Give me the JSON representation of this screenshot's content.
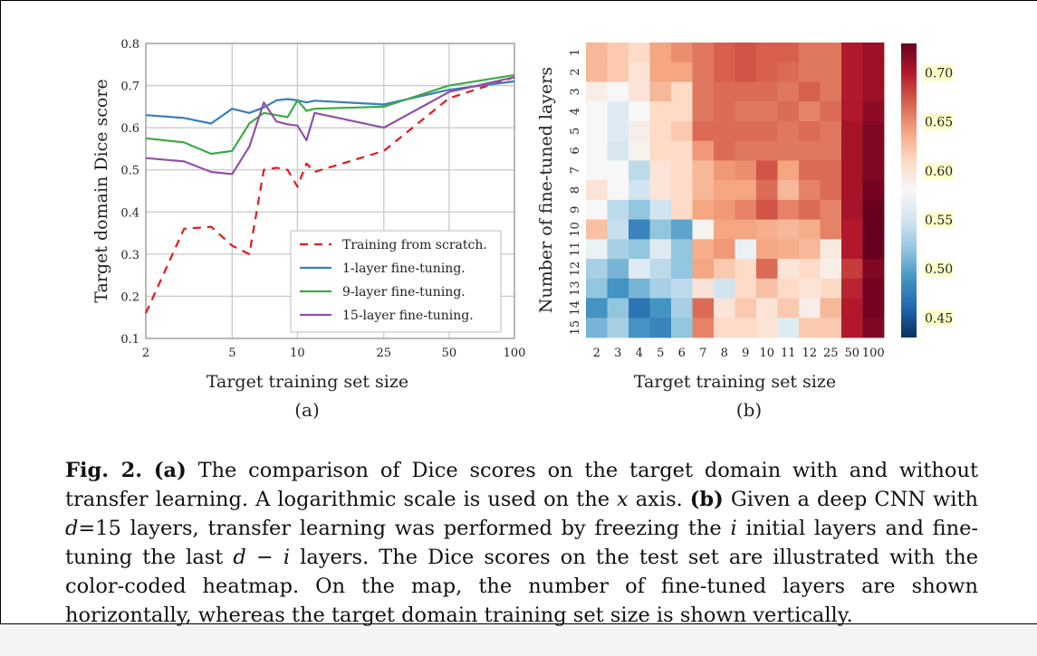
{
  "caption": {
    "fig_label": "Fig. 2.",
    "a_label": "(a)",
    "a_text": "The comparison of Dice scores on the target domain with and without transfer learning. A logarithmic scale is used on the",
    "a_var": "x",
    "a_text2": "axis.",
    "b_label": "(b)",
    "b_text1": "Given a deep CNN with",
    "b_var_d": "d",
    "b_text2": "=15 layers, transfer learning was performed by freezing the",
    "b_var_i": "i",
    "b_text3": "initial layers and fine-tuning the last",
    "b_expr": "d − i",
    "b_text4": "layers. The Dice scores on the test set are illustrated with the color-coded heatmap. On the map, the number of fine-tuned layers are shown horizontally, whereas the target domain training set size is shown vertically."
  },
  "chart_data": [
    {
      "type": "line",
      "panel_label": "(a)",
      "xlabel": "Target training set size",
      "ylabel": "Target domain  Dice score",
      "xscale": "log",
      "xlim": [
        2,
        100
      ],
      "ylim": [
        0.1,
        0.8
      ],
      "xticks": [
        2,
        5,
        10,
        25,
        50,
        100
      ],
      "yticks": [
        0.1,
        0.2,
        0.3,
        0.4,
        0.5,
        0.6,
        0.7,
        0.8
      ],
      "grid": true,
      "legend_position": "lower-right",
      "series": [
        {
          "name": "Training from scratch.",
          "color": "#e3191c",
          "dash": true,
          "x": [
            2,
            3,
            4,
            5,
            6,
            7,
            8,
            9,
            10,
            11,
            12,
            25,
            50,
            100
          ],
          "y": [
            0.16,
            0.36,
            0.365,
            0.32,
            0.3,
            0.5,
            0.505,
            0.5,
            0.46,
            0.515,
            0.495,
            0.545,
            0.67,
            0.72
          ]
        },
        {
          "name": "1-layer fine-tuning.",
          "color": "#3a7dbd",
          "dash": false,
          "x": [
            2,
            3,
            4,
            5,
            6,
            7,
            8,
            9,
            10,
            11,
            12,
            25,
            50,
            100
          ],
          "y": [
            0.63,
            0.623,
            0.61,
            0.645,
            0.635,
            0.648,
            0.665,
            0.668,
            0.665,
            0.66,
            0.664,
            0.655,
            0.69,
            0.71
          ]
        },
        {
          "name": "9-layer fine-tuning.",
          "color": "#3cab47",
          "dash": false,
          "x": [
            2,
            3,
            4,
            5,
            6,
            7,
            8,
            9,
            10,
            11,
            12,
            25,
            50,
            100
          ],
          "y": [
            0.575,
            0.565,
            0.538,
            0.545,
            0.61,
            0.635,
            0.63,
            0.625,
            0.665,
            0.64,
            0.645,
            0.65,
            0.7,
            0.725
          ]
        },
        {
          "name": "15-layer fine-tuning.",
          "color": "#9350a6",
          "dash": false,
          "x": [
            2,
            3,
            4,
            5,
            6,
            7,
            8,
            9,
            10,
            11,
            12,
            25,
            50,
            100
          ],
          "y": [
            0.528,
            0.52,
            0.495,
            0.49,
            0.555,
            0.66,
            0.615,
            0.608,
            0.605,
            0.57,
            0.635,
            0.6,
            0.685,
            0.72
          ]
        }
      ]
    },
    {
      "type": "heatmap",
      "panel_label": "(b)",
      "xlabel": "Target training set size",
      "ylabel": "Number of fine-tuned layers",
      "x_categories": [
        "2",
        "3",
        "4",
        "5",
        "6",
        "7",
        "8",
        "9",
        "10",
        "11",
        "12",
        "25",
        "50",
        "100"
      ],
      "y_categories": [
        "1",
        "2",
        "3",
        "4",
        "5",
        "6",
        "7",
        "8",
        "9",
        "10",
        "11",
        "12",
        "13",
        "14",
        "15"
      ],
      "colorbar_range": [
        0.43,
        0.73
      ],
      "colorbar_ticks": [
        "0.45",
        "0.50",
        "0.55",
        "0.60",
        "0.65",
        "0.70"
      ],
      "colormap": [
        "#053061",
        "#2166ac",
        "#4393c3",
        "#92c5de",
        "#d1e5f0",
        "#f7f7f7",
        "#fddbc7",
        "#f4a582",
        "#d6604d",
        "#b2182b",
        "#67001f"
      ],
      "values": [
        [
          0.63,
          0.62,
          0.61,
          0.64,
          0.65,
          0.66,
          0.67,
          0.675,
          0.67,
          0.67,
          0.66,
          0.66,
          0.7,
          0.71
        ],
        [
          0.63,
          0.62,
          0.6,
          0.64,
          0.64,
          0.66,
          0.67,
          0.675,
          0.67,
          0.665,
          0.66,
          0.66,
          0.7,
          0.71
        ],
        [
          0.59,
          0.58,
          0.6,
          0.63,
          0.61,
          0.66,
          0.665,
          0.665,
          0.665,
          0.66,
          0.67,
          0.66,
          0.7,
          0.71
        ],
        [
          0.58,
          0.56,
          0.58,
          0.61,
          0.61,
          0.66,
          0.665,
          0.66,
          0.66,
          0.665,
          0.655,
          0.665,
          0.7,
          0.715
        ],
        [
          0.58,
          0.56,
          0.59,
          0.61,
          0.62,
          0.665,
          0.665,
          0.665,
          0.665,
          0.66,
          0.665,
          0.66,
          0.705,
          0.72
        ],
        [
          0.58,
          0.555,
          0.585,
          0.61,
          0.61,
          0.645,
          0.665,
          0.66,
          0.66,
          0.66,
          0.66,
          0.66,
          0.705,
          0.72
        ],
        [
          0.58,
          0.58,
          0.54,
          0.6,
          0.61,
          0.63,
          0.645,
          0.65,
          0.675,
          0.64,
          0.665,
          0.665,
          0.705,
          0.72
        ],
        [
          0.6,
          0.58,
          0.55,
          0.6,
          0.61,
          0.63,
          0.64,
          0.64,
          0.665,
          0.63,
          0.655,
          0.665,
          0.705,
          0.725
        ],
        [
          0.58,
          0.54,
          0.52,
          0.55,
          0.61,
          0.64,
          0.645,
          0.655,
          0.675,
          0.655,
          0.665,
          0.655,
          0.705,
          0.73
        ],
        [
          0.625,
          0.545,
          0.48,
          0.52,
          0.5,
          0.585,
          0.64,
          0.64,
          0.635,
          0.63,
          0.635,
          0.655,
          0.7,
          0.735
        ],
        [
          0.57,
          0.53,
          0.52,
          0.56,
          0.52,
          0.635,
          0.645,
          0.57,
          0.64,
          0.635,
          0.63,
          0.595,
          0.7,
          0.73
        ],
        [
          0.53,
          0.51,
          0.56,
          0.54,
          0.52,
          0.64,
          0.62,
          0.61,
          0.665,
          0.6,
          0.61,
          0.59,
          0.685,
          0.72
        ],
        [
          0.52,
          0.49,
          0.51,
          0.53,
          0.54,
          0.6,
          0.55,
          0.61,
          0.625,
          0.61,
          0.6,
          0.61,
          0.695,
          0.725
        ],
        [
          0.49,
          0.52,
          0.47,
          0.49,
          0.53,
          0.665,
          0.6,
          0.62,
          0.6,
          0.62,
          0.59,
          0.63,
          0.7,
          0.725
        ],
        [
          0.51,
          0.53,
          0.49,
          0.48,
          0.52,
          0.655,
          0.61,
          0.61,
          0.6,
          0.56,
          0.62,
          0.62,
          0.7,
          0.72
        ]
      ]
    }
  ]
}
